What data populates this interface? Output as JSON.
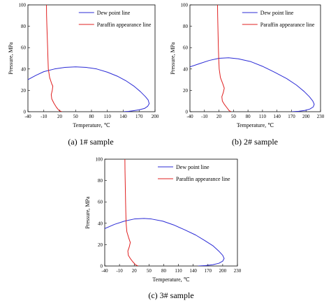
{
  "chart_data": [
    {
      "type": "line",
      "caption": "(a) 1# sample",
      "xlabel": "Temperature,  ℃",
      "ylabel": "Pressure,  MPa",
      "xlim": [
        -40,
        200
      ],
      "ylim": [
        0,
        100
      ],
      "xticks": [
        -40,
        -10,
        20,
        50,
        80,
        110,
        140,
        170,
        200
      ],
      "yticks": [
        0,
        20,
        40,
        60,
        80,
        100
      ],
      "legend_position": "top-right",
      "series": [
        {
          "name": "Dew point line",
          "color": "#2b2bd6",
          "points": [
            [
              140,
              0
            ],
            [
              150,
              0.3
            ],
            [
              160,
              1
            ],
            [
              170,
              1.8
            ],
            [
              180,
              3
            ],
            [
              186,
              5
            ],
            [
              189,
              7.5
            ],
            [
              187,
              11
            ],
            [
              182,
              14
            ],
            [
              172,
              19
            ],
            [
              160,
              24
            ],
            [
              145,
              29
            ],
            [
              130,
              33
            ],
            [
              110,
              37
            ],
            [
              90,
              40
            ],
            [
              70,
              41.5
            ],
            [
              50,
              42
            ],
            [
              30,
              41.5
            ],
            [
              10,
              40
            ],
            [
              -10,
              37.5
            ],
            [
              -25,
              34
            ],
            [
              -40,
              30
            ]
          ]
        },
        {
          "name": "Paraffin appearance line",
          "color": "#e02020",
          "points": [
            [
              -5,
              100
            ],
            [
              -4.8,
              90
            ],
            [
              -4.2,
              80
            ],
            [
              -3.5,
              70
            ],
            [
              -2.8,
              60
            ],
            [
              -2.2,
              50
            ],
            [
              -1.5,
              40
            ],
            [
              1,
              32
            ],
            [
              5,
              26
            ],
            [
              7,
              24
            ],
            [
              6,
              20
            ],
            [
              4,
              16
            ],
            [
              5,
              12
            ],
            [
              9,
              8
            ],
            [
              14,
              4
            ],
            [
              19,
              1
            ],
            [
              24,
              0
            ]
          ]
        }
      ]
    },
    {
      "type": "line",
      "caption": "(b) 2# sample",
      "xlabel": "Temperature,  ℃",
      "ylabel": "Pressure,  MPa",
      "xlim": [
        -40,
        230
      ],
      "ylim": [
        0,
        100
      ],
      "xticks": [
        -40,
        -10,
        20,
        50,
        80,
        110,
        140,
        170,
        200,
        230
      ],
      "yticks": [
        0,
        20,
        40,
        60,
        80,
        100
      ],
      "legend_position": "top-right",
      "series": [
        {
          "name": "Dew point line",
          "color": "#2b2bd6",
          "points": [
            [
              170,
              0
            ],
            [
              185,
              0.4
            ],
            [
              198,
              1.2
            ],
            [
              208,
              2.5
            ],
            [
              215,
              4.5
            ],
            [
              217,
              7
            ],
            [
              214,
              10
            ],
            [
              207,
              14
            ],
            [
              196,
              19
            ],
            [
              180,
              25
            ],
            [
              160,
              31
            ],
            [
              135,
              37
            ],
            [
              110,
              42.5
            ],
            [
              85,
              47
            ],
            [
              60,
              49.5
            ],
            [
              40,
              50.5
            ],
            [
              20,
              50
            ],
            [
              0,
              48
            ],
            [
              -20,
              45
            ],
            [
              -40,
              42
            ]
          ]
        },
        {
          "name": "Paraffin appearance line",
          "color": "#e02020",
          "points": [
            [
              17,
              100
            ],
            [
              17.3,
              90
            ],
            [
              17.8,
              80
            ],
            [
              18.3,
              70
            ],
            [
              18.8,
              60
            ],
            [
              19.5,
              50
            ],
            [
              20.5,
              40
            ],
            [
              23,
              32
            ],
            [
              28,
              26
            ],
            [
              31,
              22
            ],
            [
              29,
              18
            ],
            [
              26,
              14
            ],
            [
              27,
              10
            ],
            [
              31,
              7
            ],
            [
              36,
              4
            ],
            [
              41,
              1
            ],
            [
              45,
              0
            ]
          ]
        }
      ]
    },
    {
      "type": "line",
      "caption": "(c) 3# sample",
      "xlabel": "Temperature,  ℃",
      "ylabel": "Pressure,  MPa",
      "xlim": [
        -40,
        230
      ],
      "ylim": [
        0,
        100
      ],
      "xticks": [
        -40,
        -10,
        20,
        50,
        80,
        110,
        140,
        170,
        200,
        230
      ],
      "yticks": [
        0,
        20,
        40,
        60,
        80,
        100
      ],
      "legend_position": "top-right",
      "series": [
        {
          "name": "Dew point line",
          "color": "#2b2bd6",
          "points": [
            [
              150,
              0
            ],
            [
              165,
              0.4
            ],
            [
              180,
              1.2
            ],
            [
              192,
              2.5
            ],
            [
              200,
              4.5
            ],
            [
              203,
              7
            ],
            [
              200,
              10
            ],
            [
              192,
              14
            ],
            [
              180,
              19
            ],
            [
              163,
              24
            ],
            [
              145,
              29
            ],
            [
              122,
              34
            ],
            [
              100,
              38.5
            ],
            [
              78,
              42
            ],
            [
              55,
              44
            ],
            [
              40,
              44.5
            ],
            [
              20,
              44
            ],
            [
              0,
              42
            ],
            [
              -20,
              39
            ],
            [
              -40,
              35
            ]
          ]
        },
        {
          "name": "Paraffin appearance line",
          "color": "#e02020",
          "points": [
            [
              1,
              100
            ],
            [
              1.2,
              90
            ],
            [
              1.6,
              80
            ],
            [
              2,
              70
            ],
            [
              2.4,
              60
            ],
            [
              2.9,
              50
            ],
            [
              3.5,
              40
            ],
            [
              5,
              32
            ],
            [
              9,
              26
            ],
            [
              12,
              22
            ],
            [
              10,
              18
            ],
            [
              7,
              14
            ],
            [
              8,
              10
            ],
            [
              12,
              7
            ],
            [
              17,
              4
            ],
            [
              23,
              1
            ],
            [
              28,
              0
            ]
          ]
        }
      ]
    }
  ]
}
